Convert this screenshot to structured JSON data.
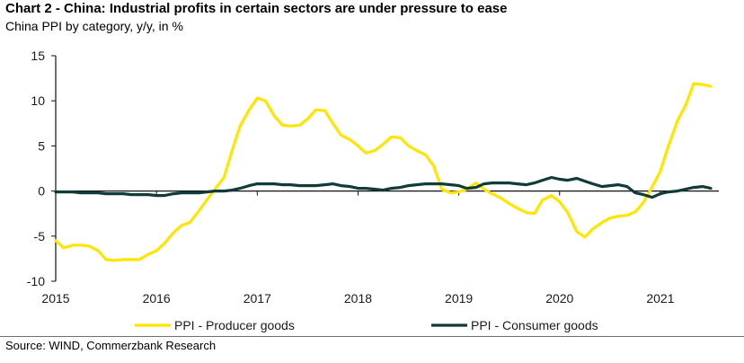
{
  "header": {
    "title": "Chart 2 - China: Industrial profits in certain sectors are under pressure to ease",
    "subtitle": "China PPI by category, y/y, in %"
  },
  "footer": {
    "source": "Source: WIND, Commerzbank Research"
  },
  "chart_data": {
    "type": "line",
    "title": "Chart 2 - China: Industrial profits in certain sectors are under pressure to ease",
    "subtitle": "China PPI by category, y/y, in %",
    "xlabel": "",
    "ylabel": "",
    "ylim": [
      -10,
      15
    ],
    "y_ticks": [
      15,
      10,
      5,
      0,
      -5,
      -10
    ],
    "xlim": [
      2015.0,
      2021.58
    ],
    "x_ticks": [
      2015,
      2016,
      2017,
      2018,
      2019,
      2020,
      2021
    ],
    "grid": false,
    "legend_position": "bottom",
    "series": [
      {
        "name": "PPI - Producer goods",
        "color": "#ffe500",
        "x": [
          2015.0,
          2015.08,
          2015.17,
          2015.25,
          2015.33,
          2015.42,
          2015.5,
          2015.58,
          2015.67,
          2015.75,
          2015.83,
          2015.92,
          2016.0,
          2016.08,
          2016.17,
          2016.25,
          2016.33,
          2016.42,
          2016.5,
          2016.58,
          2016.67,
          2016.75,
          2016.83,
          2016.92,
          2017.0,
          2017.08,
          2017.17,
          2017.25,
          2017.33,
          2017.42,
          2017.5,
          2017.58,
          2017.67,
          2017.75,
          2017.83,
          2017.92,
          2018.0,
          2018.08,
          2018.17,
          2018.25,
          2018.33,
          2018.42,
          2018.5,
          2018.58,
          2018.67,
          2018.75,
          2018.83,
          2018.92,
          2019.0,
          2019.08,
          2019.17,
          2019.25,
          2019.33,
          2019.42,
          2019.5,
          2019.58,
          2019.67,
          2019.75,
          2019.83,
          2019.92,
          2020.0,
          2020.08,
          2020.17,
          2020.25,
          2020.33,
          2020.42,
          2020.5,
          2020.58,
          2020.67,
          2020.75,
          2020.83,
          2020.92,
          2021.0,
          2021.08,
          2021.17,
          2021.25,
          2021.33,
          2021.42,
          2021.5
        ],
        "values": [
          -5.5,
          -6.3,
          -6.0,
          -6.0,
          -6.1,
          -6.6,
          -7.6,
          -7.7,
          -7.6,
          -7.6,
          -7.6,
          -7.0,
          -6.6,
          -5.8,
          -4.6,
          -3.8,
          -3.5,
          -2.2,
          -1.0,
          0.2,
          1.5,
          4.5,
          7.2,
          9.0,
          10.3,
          10.0,
          8.3,
          7.3,
          7.2,
          7.3,
          8.0,
          9.0,
          8.9,
          7.5,
          6.2,
          5.7,
          5.0,
          4.2,
          4.5,
          5.2,
          6.0,
          5.9,
          5.0,
          4.5,
          4.0,
          2.8,
          0.2,
          -0.2,
          -0.1,
          0.2,
          0.9,
          0.2,
          -0.3,
          -0.8,
          -1.4,
          -1.9,
          -2.4,
          -2.5,
          -1.0,
          -0.5,
          -1.2,
          -2.4,
          -4.5,
          -5.1,
          -4.2,
          -3.5,
          -3.0,
          -2.8,
          -2.7,
          -2.3,
          -1.3,
          0.5,
          2.2,
          5.0,
          7.8,
          9.5,
          11.9,
          11.8,
          11.6
        ]
      },
      {
        "name": "PPI - Consumer goods",
        "color": "#113b38",
        "x": [
          2015.0,
          2015.08,
          2015.17,
          2015.25,
          2015.33,
          2015.42,
          2015.5,
          2015.58,
          2015.67,
          2015.75,
          2015.83,
          2015.92,
          2016.0,
          2016.08,
          2016.17,
          2016.25,
          2016.33,
          2016.42,
          2016.5,
          2016.58,
          2016.67,
          2016.75,
          2016.83,
          2016.92,
          2017.0,
          2017.08,
          2017.17,
          2017.25,
          2017.33,
          2017.42,
          2017.5,
          2017.58,
          2017.67,
          2017.75,
          2017.83,
          2017.92,
          2018.0,
          2018.08,
          2018.17,
          2018.25,
          2018.33,
          2018.42,
          2018.5,
          2018.58,
          2018.67,
          2018.75,
          2018.83,
          2018.92,
          2019.0,
          2019.08,
          2019.17,
          2019.25,
          2019.33,
          2019.42,
          2019.5,
          2019.58,
          2019.67,
          2019.75,
          2019.83,
          2019.92,
          2020.0,
          2020.08,
          2020.17,
          2020.25,
          2020.33,
          2020.42,
          2020.5,
          2020.58,
          2020.67,
          2020.75,
          2020.83,
          2020.92,
          2021.0,
          2021.08,
          2021.17,
          2021.25,
          2021.33,
          2021.42,
          2021.5
        ],
        "values": [
          -0.1,
          -0.1,
          -0.1,
          -0.2,
          -0.2,
          -0.2,
          -0.3,
          -0.3,
          -0.3,
          -0.4,
          -0.4,
          -0.4,
          -0.5,
          -0.5,
          -0.3,
          -0.2,
          -0.2,
          -0.2,
          -0.1,
          0.0,
          0.0,
          0.1,
          0.3,
          0.6,
          0.8,
          0.8,
          0.8,
          0.7,
          0.7,
          0.6,
          0.6,
          0.6,
          0.7,
          0.8,
          0.6,
          0.5,
          0.3,
          0.3,
          0.2,
          0.1,
          0.3,
          0.4,
          0.6,
          0.7,
          0.8,
          0.8,
          0.8,
          0.7,
          0.6,
          0.3,
          0.4,
          0.8,
          0.9,
          0.9,
          0.9,
          0.8,
          0.7,
          0.9,
          1.2,
          1.5,
          1.3,
          1.2,
          1.4,
          1.1,
          0.8,
          0.5,
          0.6,
          0.7,
          0.5,
          -0.2,
          -0.4,
          -0.7,
          -0.3,
          -0.1,
          0.0,
          0.2,
          0.4,
          0.5,
          0.3
        ]
      }
    ]
  }
}
